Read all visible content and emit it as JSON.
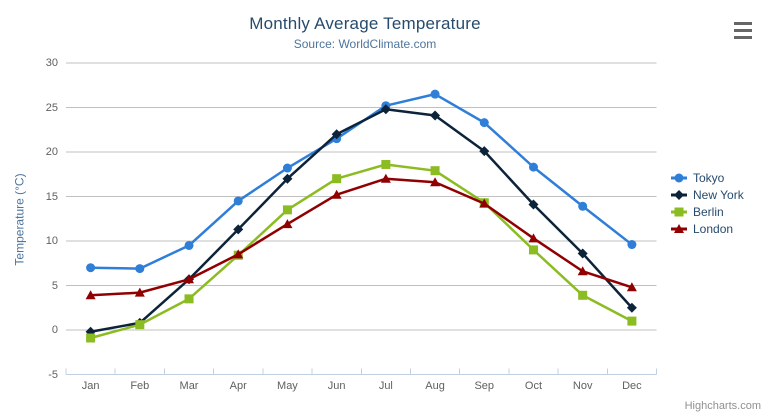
{
  "chart": {
    "credits": "Highcharts.com",
    "context_menu_icon": "hamburger-menu-icon"
  },
  "chart_data": {
    "type": "line",
    "title": "Monthly Average Temperature",
    "subtitle": "Source: WorldClimate.com",
    "xlabel": "",
    "ylabel": "Temperature (°C)",
    "categories": [
      "Jan",
      "Feb",
      "Mar",
      "Apr",
      "May",
      "Jun",
      "Jul",
      "Aug",
      "Sep",
      "Oct",
      "Nov",
      "Dec"
    ],
    "series": [
      {
        "name": "Tokyo",
        "color": "#2f7ed8",
        "marker": "circle",
        "values": [
          7.0,
          6.9,
          9.5,
          14.5,
          18.2,
          21.5,
          25.2,
          26.5,
          23.3,
          18.3,
          13.9,
          9.6
        ]
      },
      {
        "name": "New York",
        "color": "#0d233a",
        "marker": "diamond",
        "values": [
          -0.2,
          0.8,
          5.7,
          11.3,
          17.0,
          22.0,
          24.8,
          24.1,
          20.1,
          14.1,
          8.6,
          2.5
        ]
      },
      {
        "name": "Berlin",
        "color": "#8bbc21",
        "marker": "square",
        "values": [
          -0.9,
          0.6,
          3.5,
          8.4,
          13.5,
          17.0,
          18.6,
          17.9,
          14.3,
          9.0,
          3.9,
          1.0
        ]
      },
      {
        "name": "London",
        "color": "#910000",
        "marker": "triangle",
        "values": [
          3.9,
          4.2,
          5.7,
          8.5,
          11.9,
          15.2,
          17.0,
          16.6,
          14.2,
          10.3,
          6.6,
          4.8
        ]
      }
    ],
    "ylim": [
      -5,
      30
    ],
    "yticks": [
      -5,
      0,
      5,
      10,
      15,
      20,
      25,
      30
    ],
    "grid": true,
    "legend_position": "right",
    "colors": {
      "grid_line": "#c0c0c0",
      "axis_line": "#c0d0e0",
      "axis_label": "#606060",
      "title_text": "#274b6d",
      "subtitle_text": "#4d759e"
    }
  }
}
